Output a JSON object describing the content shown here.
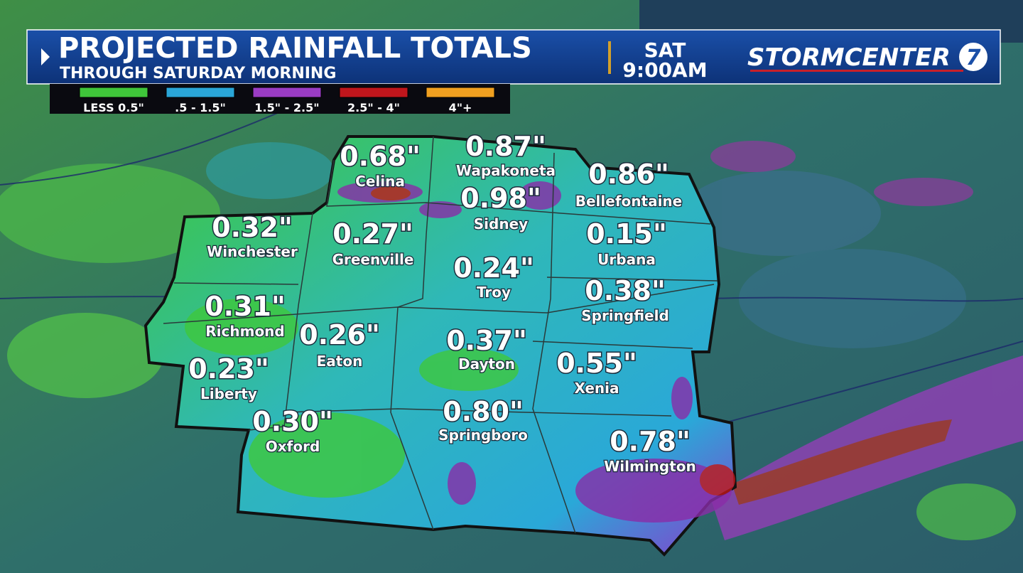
{
  "header": {
    "title": "PROJECTED RAINFALL TOTALS",
    "subtitle": "THROUGH SATURDAY MORNING",
    "day": "SAT",
    "time": "9:00AM",
    "logo": "STORMCENTER",
    "logo_number": "7"
  },
  "legend": [
    {
      "label": "LESS 0.5\"",
      "color": "#3fc63a"
    },
    {
      "label": ".5 - 1.5\"",
      "color": "#2aa6d8"
    },
    {
      "label": "1.5\" - 2.5\"",
      "color": "#9a3cc4"
    },
    {
      "label": "2.5\" - 4\"",
      "color": "#c0161c"
    },
    {
      "label": "4\"+",
      "color": "#f0a020"
    }
  ],
  "locations": [
    {
      "value": "0.68\"",
      "name": "Celina"
    },
    {
      "value": "0.87\"",
      "name": "Wapakoneta"
    },
    {
      "value": "0.86\"",
      "name": "Bellefontaine"
    },
    {
      "value": "0.98\"",
      "name": "Sidney"
    },
    {
      "value": "0.32\"",
      "name": "Winchester"
    },
    {
      "value": "0.27\"",
      "name": "Greenville"
    },
    {
      "value": "0.15\"",
      "name": "Urbana"
    },
    {
      "value": "0.24\"",
      "name": "Troy"
    },
    {
      "value": "0.31\"",
      "name": "Richmond"
    },
    {
      "value": "0.38\"",
      "name": "Springfield"
    },
    {
      "value": "0.26\"",
      "name": "Eaton"
    },
    {
      "value": "0.37\"",
      "name": "Dayton"
    },
    {
      "value": "0.55\"",
      "name": "Xenia"
    },
    {
      "value": "0.23\"",
      "name": "Liberty"
    },
    {
      "value": "0.30\"",
      "name": "Oxford"
    },
    {
      "value": "0.80\"",
      "name": "Springboro"
    },
    {
      "value": "0.78\"",
      "name": "Wilmington"
    }
  ]
}
